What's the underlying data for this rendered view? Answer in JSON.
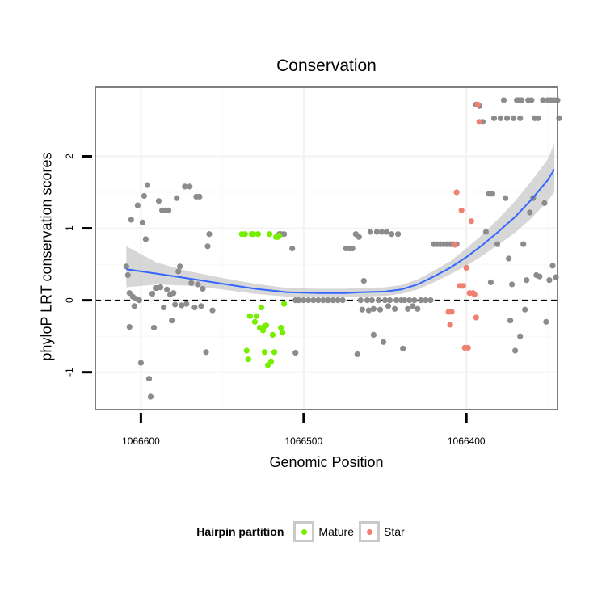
{
  "chart_data": {
    "type": "scatter",
    "title": "Conservation",
    "xlabel": "Genomic Position",
    "ylabel": "phyloP LRT conservation scores",
    "x_reversed": true,
    "xlim": [
      1066628,
      1066344
    ],
    "ylim": [
      -1.52,
      2.96
    ],
    "x_ticks": [
      1066600,
      1066500,
      1066400
    ],
    "x_tick_labels": [
      "1066600",
      "1066500",
      "1066400"
    ],
    "y_ticks": [
      -1,
      0,
      1,
      2
    ],
    "y_tick_labels": [
      "-1",
      "0",
      "1",
      "2"
    ],
    "reference_line": {
      "y": 0,
      "style": "dashed"
    },
    "legend": {
      "title": "Hairpin partition",
      "position": "bottom",
      "entries": [
        {
          "label": "Mature",
          "color": "#76ee00"
        },
        {
          "label": "Star",
          "color": "#f08070"
        }
      ]
    },
    "colors": {
      "other": "#8c8c8c",
      "Mature": "#76ee00",
      "Star": "#f08070",
      "smooth": "#3366ff",
      "band": "#bdbdbd"
    },
    "series": [
      {
        "name": "Other",
        "points": [
          [
            1066609,
            0.47
          ],
          [
            1066608,
            0.35
          ],
          [
            1066607,
            0.1
          ],
          [
            1066607,
            -0.37
          ],
          [
            1066606,
            1.12
          ],
          [
            1066605,
            0.05
          ],
          [
            1066604,
            -0.08
          ],
          [
            1066603,
            0.02
          ],
          [
            1066602,
            1.32
          ],
          [
            1066601,
            0.0
          ],
          [
            1066600,
            -0.87
          ],
          [
            1066599,
            1.08
          ],
          [
            1066598,
            1.45
          ],
          [
            1066597,
            0.85
          ],
          [
            1066596,
            1.6
          ],
          [
            1066595,
            -1.09
          ],
          [
            1066594,
            -1.34
          ],
          [
            1066593,
            0.09
          ],
          [
            1066592,
            -0.38
          ],
          [
            1066591,
            0.17
          ],
          [
            1066590,
            0.17
          ],
          [
            1066589,
            1.38
          ],
          [
            1066588,
            0.18
          ],
          [
            1066587,
            1.25
          ],
          [
            1066586,
            -0.1
          ],
          [
            1066585,
            1.25
          ],
          [
            1066584,
            0.15
          ],
          [
            1066583,
            1.25
          ],
          [
            1066582,
            0.08
          ],
          [
            1066581,
            -0.28
          ],
          [
            1066580,
            0.1
          ],
          [
            1066579,
            -0.06
          ],
          [
            1066578,
            1.42
          ],
          [
            1066577,
            0.4
          ],
          [
            1066576,
            0.47
          ],
          [
            1066575,
            -0.07
          ],
          [
            1066573,
            1.58
          ],
          [
            1066572,
            -0.05
          ],
          [
            1066570,
            1.58
          ],
          [
            1066569,
            0.24
          ],
          [
            1066567,
            -0.1
          ],
          [
            1066566,
            1.44
          ],
          [
            1066565,
            0.22
          ],
          [
            1066564,
            1.44
          ],
          [
            1066563,
            -0.08
          ],
          [
            1066562,
            0.16
          ],
          [
            1066560,
            -0.72
          ],
          [
            1066559,
            0.75
          ],
          [
            1066558,
            0.92
          ],
          [
            1066556,
            -0.14
          ],
          [
            1066515,
            0.92
          ],
          [
            1066514,
            0.92
          ],
          [
            1066512,
            0.92
          ],
          [
            1066507,
            0.72
          ],
          [
            1066505,
            -0.73
          ],
          [
            1066505,
            0.0
          ],
          [
            1066503,
            0.0
          ],
          [
            1066500,
            0.0
          ],
          [
            1066497,
            0.0
          ],
          [
            1066494,
            0.0
          ],
          [
            1066491,
            0.0
          ],
          [
            1066488,
            0.0
          ],
          [
            1066485,
            0.0
          ],
          [
            1066482,
            0.0
          ],
          [
            1066479,
            0.0
          ],
          [
            1066476,
            0.0
          ],
          [
            1066474,
            0.72
          ],
          [
            1066472,
            0.72
          ],
          [
            1066470,
            0.72
          ],
          [
            1066468,
            0.92
          ],
          [
            1066467,
            -0.75
          ],
          [
            1066466,
            0.88
          ],
          [
            1066465,
            0.0
          ],
          [
            1066464,
            -0.13
          ],
          [
            1066463,
            0.27
          ],
          [
            1066461,
            0.0
          ],
          [
            1066460,
            -0.14
          ],
          [
            1066459,
            0.95
          ],
          [
            1066458,
            0.0
          ],
          [
            1066457,
            -0.12
          ],
          [
            1066457,
            -0.48
          ],
          [
            1066455,
            0.95
          ],
          [
            1066454,
            0.0
          ],
          [
            1066453,
            -0.13
          ],
          [
            1066452,
            0.95
          ],
          [
            1066451,
            -0.58
          ],
          [
            1066450,
            0.0
          ],
          [
            1066449,
            0.95
          ],
          [
            1066448,
            -0.08
          ],
          [
            1066447,
            0.0
          ],
          [
            1066446,
            0.92
          ],
          [
            1066444,
            -0.12
          ],
          [
            1066443,
            0.0
          ],
          [
            1066442,
            0.92
          ],
          [
            1066440,
            0.0
          ],
          [
            1066439,
            -0.67
          ],
          [
            1066438,
            0.0
          ],
          [
            1066436,
            -0.12
          ],
          [
            1066435,
            0.0
          ],
          [
            1066433,
            -0.08
          ],
          [
            1066432,
            0.0
          ],
          [
            1066430,
            -0.12
          ],
          [
            1066428,
            0.0
          ],
          [
            1066425,
            0.0
          ],
          [
            1066422,
            0.0
          ],
          [
            1066420,
            0.78
          ],
          [
            1066418,
            0.78
          ],
          [
            1066416,
            0.78
          ],
          [
            1066414,
            0.78
          ],
          [
            1066412,
            0.78
          ],
          [
            1066410,
            0.78
          ],
          [
            1066408,
            0.78
          ],
          [
            1066406,
            0.78
          ],
          [
            1066394,
            2.72
          ],
          [
            1066392,
            2.7
          ],
          [
            1066390,
            2.48
          ],
          [
            1066388,
            0.95
          ],
          [
            1066386,
            1.48
          ],
          [
            1066385,
            0.25
          ],
          [
            1066384,
            1.48
          ],
          [
            1066383,
            2.53
          ],
          [
            1066381,
            0.78
          ],
          [
            1066379,
            2.53
          ],
          [
            1066377,
            2.78
          ],
          [
            1066376,
            1.42
          ],
          [
            1066375,
            2.53
          ],
          [
            1066374,
            0.58
          ],
          [
            1066373,
            -0.28
          ],
          [
            1066372,
            0.22
          ],
          [
            1066371,
            2.53
          ],
          [
            1066370,
            -0.7
          ],
          [
            1066369,
            2.78
          ],
          [
            1066368,
            2.78
          ],
          [
            1066367,
            -0.5
          ],
          [
            1066367,
            2.53
          ],
          [
            1066366,
            2.78
          ],
          [
            1066365,
            0.78
          ],
          [
            1066364,
            -0.13
          ],
          [
            1066363,
            0.28
          ],
          [
            1066362,
            2.78
          ],
          [
            1066361,
            1.22
          ],
          [
            1066360,
            2.78
          ],
          [
            1066359,
            1.42
          ],
          [
            1066358,
            2.53
          ],
          [
            1066357,
            0.35
          ],
          [
            1066356,
            2.53
          ],
          [
            1066355,
            0.33
          ],
          [
            1066353,
            2.78
          ],
          [
            1066352,
            1.35
          ],
          [
            1066351,
            -0.3
          ],
          [
            1066350,
            2.78
          ],
          [
            1066349,
            0.28
          ],
          [
            1066348,
            2.78
          ],
          [
            1066347,
            0.48
          ],
          [
            1066346,
            2.78
          ],
          [
            1066345,
            0.32
          ],
          [
            1066344,
            2.78
          ],
          [
            1066343,
            2.53
          ]
        ]
      },
      {
        "name": "Mature",
        "points": [
          [
            1066538,
            0.92
          ],
          [
            1066536,
            0.92
          ],
          [
            1066535,
            -0.7
          ],
          [
            1066534,
            -0.82
          ],
          [
            1066533,
            -0.22
          ],
          [
            1066532,
            0.92
          ],
          [
            1066531,
            0.92
          ],
          [
            1066530,
            -0.3
          ],
          [
            1066529,
            -0.22
          ],
          [
            1066528,
            0.92
          ],
          [
            1066527,
            -0.38
          ],
          [
            1066526,
            -0.1
          ],
          [
            1066525,
            -0.42
          ],
          [
            1066524,
            -0.36
          ],
          [
            1066524,
            -0.72
          ],
          [
            1066523,
            -0.35
          ],
          [
            1066522,
            -0.9
          ],
          [
            1066521,
            0.92
          ],
          [
            1066520,
            -0.85
          ],
          [
            1066519,
            -0.48
          ],
          [
            1066518,
            -0.72
          ],
          [
            1066517,
            0.88
          ],
          [
            1066516,
            0.88
          ],
          [
            1066515,
            0.9
          ],
          [
            1066514,
            -0.38
          ],
          [
            1066513,
            -0.45
          ],
          [
            1066512,
            -0.05
          ]
        ]
      },
      {
        "name": "Star",
        "points": [
          [
            1066411,
            -0.16
          ],
          [
            1066410,
            -0.34
          ],
          [
            1066409,
            -0.16
          ],
          [
            1066407,
            0.77
          ],
          [
            1066406,
            1.5
          ],
          [
            1066404,
            0.2
          ],
          [
            1066403,
            1.25
          ],
          [
            1066402,
            0.2
          ],
          [
            1066401,
            -0.66
          ],
          [
            1066400,
            0.45
          ],
          [
            1066399,
            -0.66
          ],
          [
            1066398,
            0.1
          ],
          [
            1066397,
            1.1
          ],
          [
            1066396,
            0.1
          ],
          [
            1066395,
            0.08
          ],
          [
            1066394,
            -0.24
          ],
          [
            1066393,
            2.72
          ],
          [
            1066392,
            2.48
          ]
        ]
      }
    ],
    "smooth": {
      "method": "loess",
      "x": [
        1066609,
        1066590,
        1066570,
        1066550,
        1066530,
        1066510,
        1066490,
        1066475,
        1066465,
        1066450,
        1066440,
        1066430,
        1066420,
        1066410,
        1066400,
        1066390,
        1066380,
        1066370,
        1066360,
        1066350,
        1066346
      ],
      "y": [
        0.43,
        0.37,
        0.3,
        0.23,
        0.16,
        0.11,
        0.1,
        0.1,
        0.11,
        0.12,
        0.15,
        0.22,
        0.33,
        0.45,
        0.6,
        0.77,
        0.96,
        1.16,
        1.4,
        1.67,
        1.82
      ],
      "lower": [
        0.18,
        0.22,
        0.2,
        0.15,
        0.09,
        0.05,
        0.04,
        0.04,
        0.05,
        0.06,
        0.09,
        0.15,
        0.25,
        0.36,
        0.48,
        0.62,
        0.78,
        0.94,
        1.14,
        1.38,
        1.5
      ],
      "upper": [
        0.75,
        0.52,
        0.4,
        0.31,
        0.23,
        0.17,
        0.16,
        0.16,
        0.17,
        0.18,
        0.21,
        0.29,
        0.41,
        0.54,
        0.72,
        0.92,
        1.14,
        1.38,
        1.66,
        1.96,
        2.18
      ]
    }
  }
}
